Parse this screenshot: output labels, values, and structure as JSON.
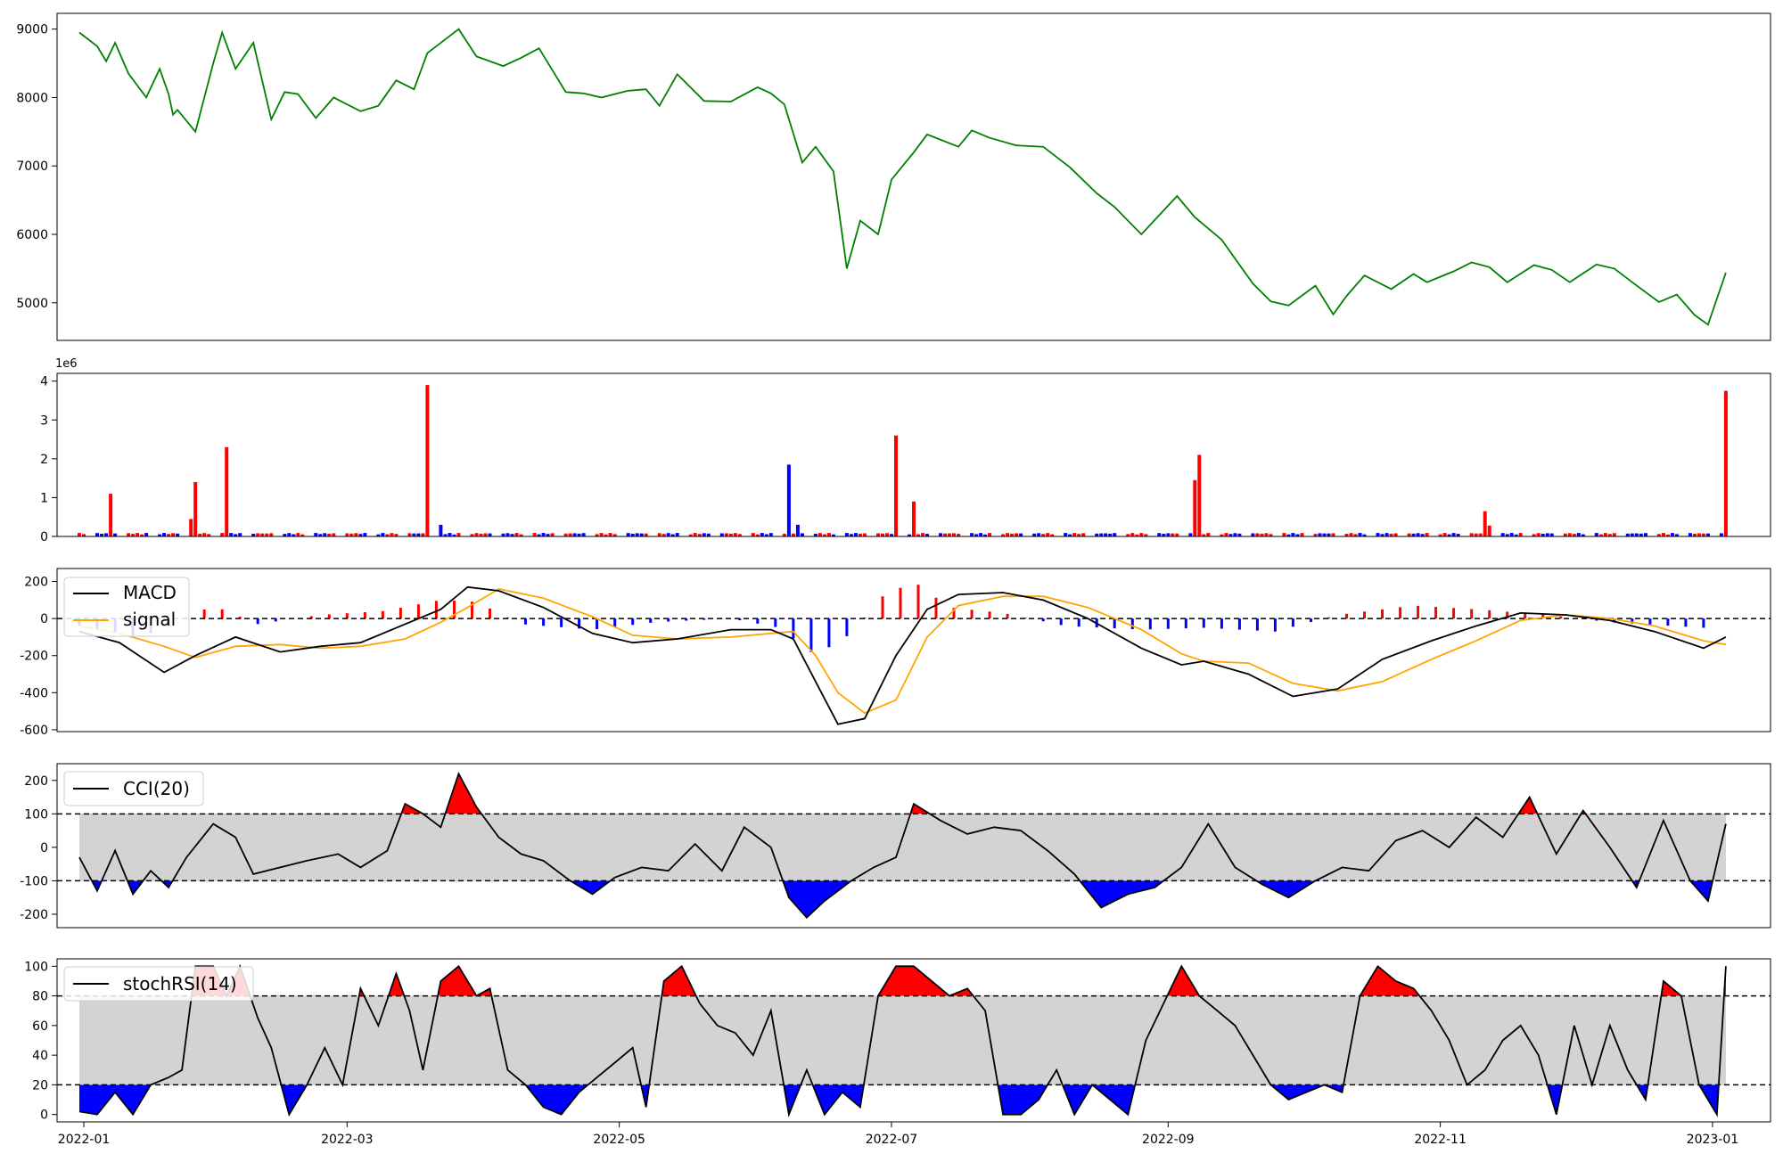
{
  "figure": {
    "volume_multiplier": "1e6"
  },
  "chart_data": [
    {
      "id": "price",
      "type": "line",
      "color": "#008000",
      "x_dates": [
        "2022-01-06",
        "2022-01-10",
        "2022-01-12",
        "2022-01-14",
        "2022-01-17",
        "2022-01-21",
        "2022-01-24",
        "2022-01-26",
        "2022-01-27",
        "2022-01-28",
        "2022-02-01",
        "2022-02-05",
        "2022-02-07",
        "2022-02-10",
        "2022-02-14",
        "2022-02-18",
        "2022-02-21",
        "2022-02-24",
        "2022-02-28",
        "2022-03-04",
        "2022-03-10",
        "2022-03-14",
        "2022-03-18",
        "2022-03-22",
        "2022-03-25",
        "2022-03-30",
        "2022-04-01",
        "2022-04-05",
        "2022-04-11",
        "2022-04-15",
        "2022-04-19",
        "2022-04-25",
        "2022-04-29",
        "2022-05-03",
        "2022-05-09",
        "2022-05-13",
        "2022-05-16",
        "2022-05-20",
        "2022-05-26",
        "2022-06-01",
        "2022-06-07",
        "2022-06-10",
        "2022-06-13",
        "2022-06-17",
        "2022-06-20",
        "2022-06-24",
        "2022-06-27",
        "2022-06-30",
        "2022-07-04",
        "2022-07-07",
        "2022-07-12",
        "2022-07-15",
        "2022-07-22",
        "2022-07-25",
        "2022-07-29",
        "2022-08-04",
        "2022-08-10",
        "2022-08-16",
        "2022-08-22",
        "2022-08-26",
        "2022-09-01",
        "2022-09-09",
        "2022-09-13",
        "2022-09-19",
        "2022-09-26",
        "2022-09-30",
        "2022-10-04",
        "2022-10-10",
        "2022-10-14",
        "2022-10-17",
        "2022-10-21",
        "2022-10-27",
        "2022-11-01",
        "2022-11-04",
        "2022-11-10",
        "2022-11-14",
        "2022-11-18",
        "2022-11-22",
        "2022-11-28",
        "2022-12-02",
        "2022-12-06",
        "2022-12-12",
        "2022-12-16",
        "2022-12-20",
        "2022-12-26",
        "2022-12-30",
        "2023-01-03",
        "2023-01-06",
        "2023-01-10"
      ],
      "values": [
        8950,
        8750,
        8530,
        8800,
        8350,
        8000,
        8420,
        8050,
        7750,
        7820,
        7500,
        8500,
        8950,
        8420,
        8800,
        7680,
        8080,
        8050,
        7700,
        8000,
        7800,
        7880,
        8250,
        8120,
        8650,
        8900,
        9000,
        8600,
        8460,
        8580,
        8720,
        8080,
        8060,
        8000,
        8100,
        8120,
        7880,
        8340,
        7950,
        7940,
        8150,
        8060,
        7900,
        7050,
        7280,
        6920,
        5500,
        6200,
        6000,
        6800,
        7200,
        7460,
        7280,
        7520,
        7410,
        7300,
        7280,
        6980,
        6600,
        6400,
        6000,
        6560,
        6250,
        5920,
        5280,
        5020,
        4960,
        5250,
        4830,
        5100,
        5400,
        5200,
        5420,
        5300,
        5460,
        5590,
        5520,
        5300,
        5550,
        5480,
        5300,
        5560,
        5500,
        5300,
        5010,
        5120,
        4820,
        4680,
        5440
      ],
      "ylim": [
        4450,
        9230
      ],
      "yticks": [
        5000,
        6000,
        7000,
        8000,
        9000
      ]
    },
    {
      "id": "volume",
      "type": "bar",
      "multiplier_label": "1e6",
      "up_color": "#ff0000",
      "down_color": "#0000ff",
      "baseline": 0.05,
      "spikes": [
        {
          "date": "2022-01-13",
          "value": 1.1,
          "direction": "up"
        },
        {
          "date": "2022-01-31",
          "value": 0.45,
          "direction": "up"
        },
        {
          "date": "2022-02-01",
          "value": 1.4,
          "direction": "up"
        },
        {
          "date": "2022-02-08",
          "value": 2.3,
          "direction": "up"
        },
        {
          "date": "2022-03-25",
          "value": 3.9,
          "direction": "up"
        },
        {
          "date": "2022-03-28",
          "value": 0.3,
          "direction": "down"
        },
        {
          "date": "2022-06-14",
          "value": 1.85,
          "direction": "down"
        },
        {
          "date": "2022-06-16",
          "value": 0.3,
          "direction": "down"
        },
        {
          "date": "2022-07-08",
          "value": 2.6,
          "direction": "up"
        },
        {
          "date": "2022-07-12",
          "value": 0.9,
          "direction": "up"
        },
        {
          "date": "2022-09-13",
          "value": 1.45,
          "direction": "up"
        },
        {
          "date": "2022-09-14",
          "value": 2.1,
          "direction": "up"
        },
        {
          "date": "2022-11-17",
          "value": 0.65,
          "direction": "up"
        },
        {
          "date": "2022-11-18",
          "value": 0.28,
          "direction": "up"
        },
        {
          "date": "2023-01-10",
          "value": 3.75,
          "direction": "up"
        }
      ],
      "ylim": [
        0,
        4.2
      ],
      "yticks": [
        0,
        1,
        2,
        3,
        4
      ]
    },
    {
      "id": "macd",
      "type": "line",
      "legend": [
        "MACD",
        "signal"
      ],
      "macd_color": "#000000",
      "signal_color": "#ffa500",
      "x_dates": [
        "2022-01-06",
        "2022-01-15",
        "2022-01-25",
        "2022-02-01",
        "2022-02-10",
        "2022-02-20",
        "2022-03-01",
        "2022-03-10",
        "2022-03-20",
        "2022-03-28",
        "2022-04-03",
        "2022-04-10",
        "2022-04-20",
        "2022-05-01",
        "2022-05-10",
        "2022-05-20",
        "2022-06-01",
        "2022-06-10",
        "2022-06-15",
        "2022-06-20",
        "2022-06-25",
        "2022-07-01",
        "2022-07-08",
        "2022-07-15",
        "2022-07-22",
        "2022-08-01",
        "2022-08-10",
        "2022-08-20",
        "2022-09-01",
        "2022-09-10",
        "2022-09-15",
        "2022-09-25",
        "2022-10-05",
        "2022-10-15",
        "2022-10-25",
        "2022-11-05",
        "2022-11-15",
        "2022-11-25",
        "2022-12-05",
        "2022-12-15",
        "2022-12-25",
        "2023-01-05",
        "2023-01-10"
      ],
      "macd": [
        -70,
        -130,
        -290,
        -200,
        -100,
        -180,
        -150,
        -130,
        -30,
        50,
        170,
        150,
        60,
        -80,
        -130,
        -110,
        -60,
        -60,
        -110,
        -340,
        -570,
        -540,
        -200,
        50,
        130,
        140,
        100,
        0,
        -160,
        -250,
        -230,
        -300,
        -420,
        -380,
        -220,
        -120,
        -40,
        30,
        20,
        -10,
        -70,
        -160,
        -100
      ],
      "signal": [
        -40,
        -80,
        -150,
        -210,
        -150,
        -140,
        -160,
        -150,
        -110,
        -20,
        60,
        160,
        110,
        10,
        -90,
        -110,
        -100,
        -80,
        -70,
        -200,
        -400,
        -510,
        -440,
        -100,
        70,
        120,
        120,
        60,
        -60,
        -190,
        -230,
        -240,
        -350,
        -390,
        -340,
        -220,
        -120,
        -10,
        20,
        0,
        -40,
        -120,
        -140
      ],
      "histogram_dates": [
        "2022-01-06",
        "2022-01-20",
        "2022-02-05",
        "2022-02-15",
        "2022-03-01",
        "2022-03-15",
        "2022-03-28",
        "2022-04-05",
        "2022-04-15",
        "2022-05-01",
        "2022-05-15",
        "2022-06-01",
        "2022-06-12",
        "2022-06-20",
        "2022-06-28",
        "2022-07-05",
        "2022-07-12",
        "2022-07-20",
        "2022-08-01",
        "2022-08-15",
        "2022-09-01",
        "2022-09-15",
        "2022-10-01",
        "2022-10-15",
        "2022-11-01",
        "2022-11-15",
        "2022-12-01",
        "2022-12-15",
        "2023-01-05"
      ],
      "histogram": [
        -40,
        -100,
        70,
        -30,
        20,
        40,
        100,
        90,
        -30,
        -60,
        -20,
        0,
        -50,
        -200,
        -80,
        120,
        200,
        60,
        30,
        -40,
        -60,
        -50,
        -70,
        20,
        70,
        50,
        20,
        -20,
        -50
      ],
      "ylim": [
        -610,
        270
      ],
      "yticks": [
        -600,
        -400,
        -200,
        0,
        200
      ],
      "zero_line": 0
    },
    {
      "id": "cci",
      "type": "line",
      "legend": [
        "CCI(20)"
      ],
      "line_color": "#000000",
      "x_dates": [
        "2022-01-06",
        "2022-01-10",
        "2022-01-14",
        "2022-01-18",
        "2022-01-22",
        "2022-01-26",
        "2022-01-30",
        "2022-02-05",
        "2022-02-10",
        "2022-02-14",
        "2022-02-20",
        "2022-02-26",
        "2022-03-05",
        "2022-03-10",
        "2022-03-16",
        "2022-03-20",
        "2022-03-24",
        "2022-03-28",
        "2022-04-01",
        "2022-04-05",
        "2022-04-10",
        "2022-04-15",
        "2022-04-20",
        "2022-04-26",
        "2022-05-01",
        "2022-05-06",
        "2022-05-12",
        "2022-05-18",
        "2022-05-24",
        "2022-05-30",
        "2022-06-04",
        "2022-06-10",
        "2022-06-14",
        "2022-06-18",
        "2022-06-22",
        "2022-06-28",
        "2022-07-03",
        "2022-07-08",
        "2022-07-12",
        "2022-07-18",
        "2022-07-24",
        "2022-07-30",
        "2022-08-05",
        "2022-08-11",
        "2022-08-17",
        "2022-08-23",
        "2022-08-29",
        "2022-09-04",
        "2022-09-10",
        "2022-09-16",
        "2022-09-22",
        "2022-09-28",
        "2022-10-04",
        "2022-10-10",
        "2022-10-16",
        "2022-10-22",
        "2022-10-28",
        "2022-11-03",
        "2022-11-09",
        "2022-11-15",
        "2022-11-21",
        "2022-11-27",
        "2022-12-03",
        "2022-12-09",
        "2022-12-15",
        "2022-12-21",
        "2022-12-27",
        "2023-01-02",
        "2023-01-06",
        "2023-01-10"
      ],
      "values": [
        -30,
        -130,
        -10,
        -140,
        -70,
        -120,
        -30,
        70,
        30,
        -80,
        -60,
        -40,
        -20,
        -60,
        -10,
        130,
        100,
        60,
        220,
        120,
        30,
        -20,
        -40,
        -100,
        -140,
        -90,
        -60,
        -70,
        10,
        -70,
        60,
        0,
        -150,
        -210,
        -160,
        -100,
        -60,
        -30,
        130,
        80,
        40,
        60,
        50,
        -10,
        -80,
        -180,
        -140,
        -120,
        -60,
        70,
        -60,
        -110,
        -150,
        -100,
        -60,
        -70,
        20,
        50,
        0,
        90,
        30,
        150,
        -20,
        110,
        0,
        -120,
        80,
        -100,
        -160,
        70
      ],
      "upper_band": 100,
      "lower_band": -100,
      "ylim": [
        -240,
        250
      ],
      "yticks": [
        -200,
        -100,
        0,
        100,
        200
      ]
    },
    {
      "id": "stochrsi",
      "type": "line",
      "legend": [
        "stochRSI(14)"
      ],
      "line_color": "#000000",
      "x_dates": [
        "2022-01-06",
        "2022-01-10",
        "2022-01-14",
        "2022-01-18",
        "2022-01-22",
        "2022-01-26",
        "2022-01-29",
        "2022-02-01",
        "2022-02-05",
        "2022-02-08",
        "2022-02-11",
        "2022-02-15",
        "2022-02-18",
        "2022-02-22",
        "2022-02-26",
        "2022-03-02",
        "2022-03-06",
        "2022-03-10",
        "2022-03-14",
        "2022-03-18",
        "2022-03-21",
        "2022-03-24",
        "2022-03-28",
        "2022-04-01",
        "2022-04-05",
        "2022-04-08",
        "2022-04-12",
        "2022-04-16",
        "2022-04-20",
        "2022-04-24",
        "2022-04-28",
        "2022-05-02",
        "2022-05-06",
        "2022-05-10",
        "2022-05-13",
        "2022-05-17",
        "2022-05-21",
        "2022-05-25",
        "2022-05-29",
        "2022-06-02",
        "2022-06-06",
        "2022-06-10",
        "2022-06-14",
        "2022-06-18",
        "2022-06-22",
        "2022-06-26",
        "2022-06-30",
        "2022-07-04",
        "2022-07-08",
        "2022-07-12",
        "2022-07-16",
        "2022-07-20",
        "2022-07-24",
        "2022-07-28",
        "2022-08-01",
        "2022-08-05",
        "2022-08-09",
        "2022-08-13",
        "2022-08-17",
        "2022-08-21",
        "2022-08-25",
        "2022-08-29",
        "2022-09-02",
        "2022-09-06",
        "2022-09-10",
        "2022-09-14",
        "2022-09-18",
        "2022-09-22",
        "2022-09-26",
        "2022-09-30",
        "2022-10-04",
        "2022-10-08",
        "2022-10-12",
        "2022-10-16",
        "2022-10-20",
        "2022-10-24",
        "2022-10-28",
        "2022-11-01",
        "2022-11-05",
        "2022-11-09",
        "2022-11-13",
        "2022-11-17",
        "2022-11-21",
        "2022-11-25",
        "2022-11-29",
        "2022-12-03",
        "2022-12-07",
        "2022-12-11",
        "2022-12-15",
        "2022-12-19",
        "2022-12-23",
        "2022-12-27",
        "2022-12-31",
        "2023-01-04",
        "2023-01-08",
        "2023-01-10"
      ],
      "values": [
        2,
        0,
        15,
        0,
        20,
        25,
        30,
        100,
        100,
        80,
        100,
        65,
        45,
        0,
        20,
        45,
        20,
        85,
        60,
        95,
        70,
        30,
        90,
        100,
        80,
        85,
        30,
        20,
        5,
        0,
        15,
        25,
        35,
        45,
        5,
        90,
        100,
        75,
        60,
        55,
        40,
        70,
        0,
        30,
        0,
        15,
        5,
        80,
        100,
        100,
        90,
        80,
        85,
        70,
        0,
        0,
        10,
        30,
        0,
        20,
        10,
        0,
        50,
        75,
        100,
        80,
        70,
        60,
        40,
        20,
        10,
        15,
        20,
        15,
        80,
        100,
        90,
        85,
        70,
        50,
        20,
        30,
        50,
        60,
        40,
        0,
        60,
        20,
        60,
        30,
        10,
        90,
        80,
        20,
        0,
        100
      ],
      "upper_band": 80,
      "lower_band": 20,
      "ylim": [
        -5,
        105
      ],
      "yticks": [
        0,
        20,
        40,
        60,
        80,
        100
      ]
    }
  ],
  "x_axis": {
    "start": "2022-01-01",
    "end": "2023-01-20",
    "ticks": [
      {
        "date": "2022-01-07",
        "label": "2022-01"
      },
      {
        "date": "2022-03-07",
        "label": "2022-03"
      },
      {
        "date": "2022-05-07",
        "label": "2022-05"
      },
      {
        "date": "2022-07-07",
        "label": "2022-07"
      },
      {
        "date": "2022-09-07",
        "label": "2022-09"
      },
      {
        "date": "2022-11-07",
        "label": "2022-11"
      },
      {
        "date": "2023-01-07",
        "label": "2023-01"
      }
    ]
  }
}
